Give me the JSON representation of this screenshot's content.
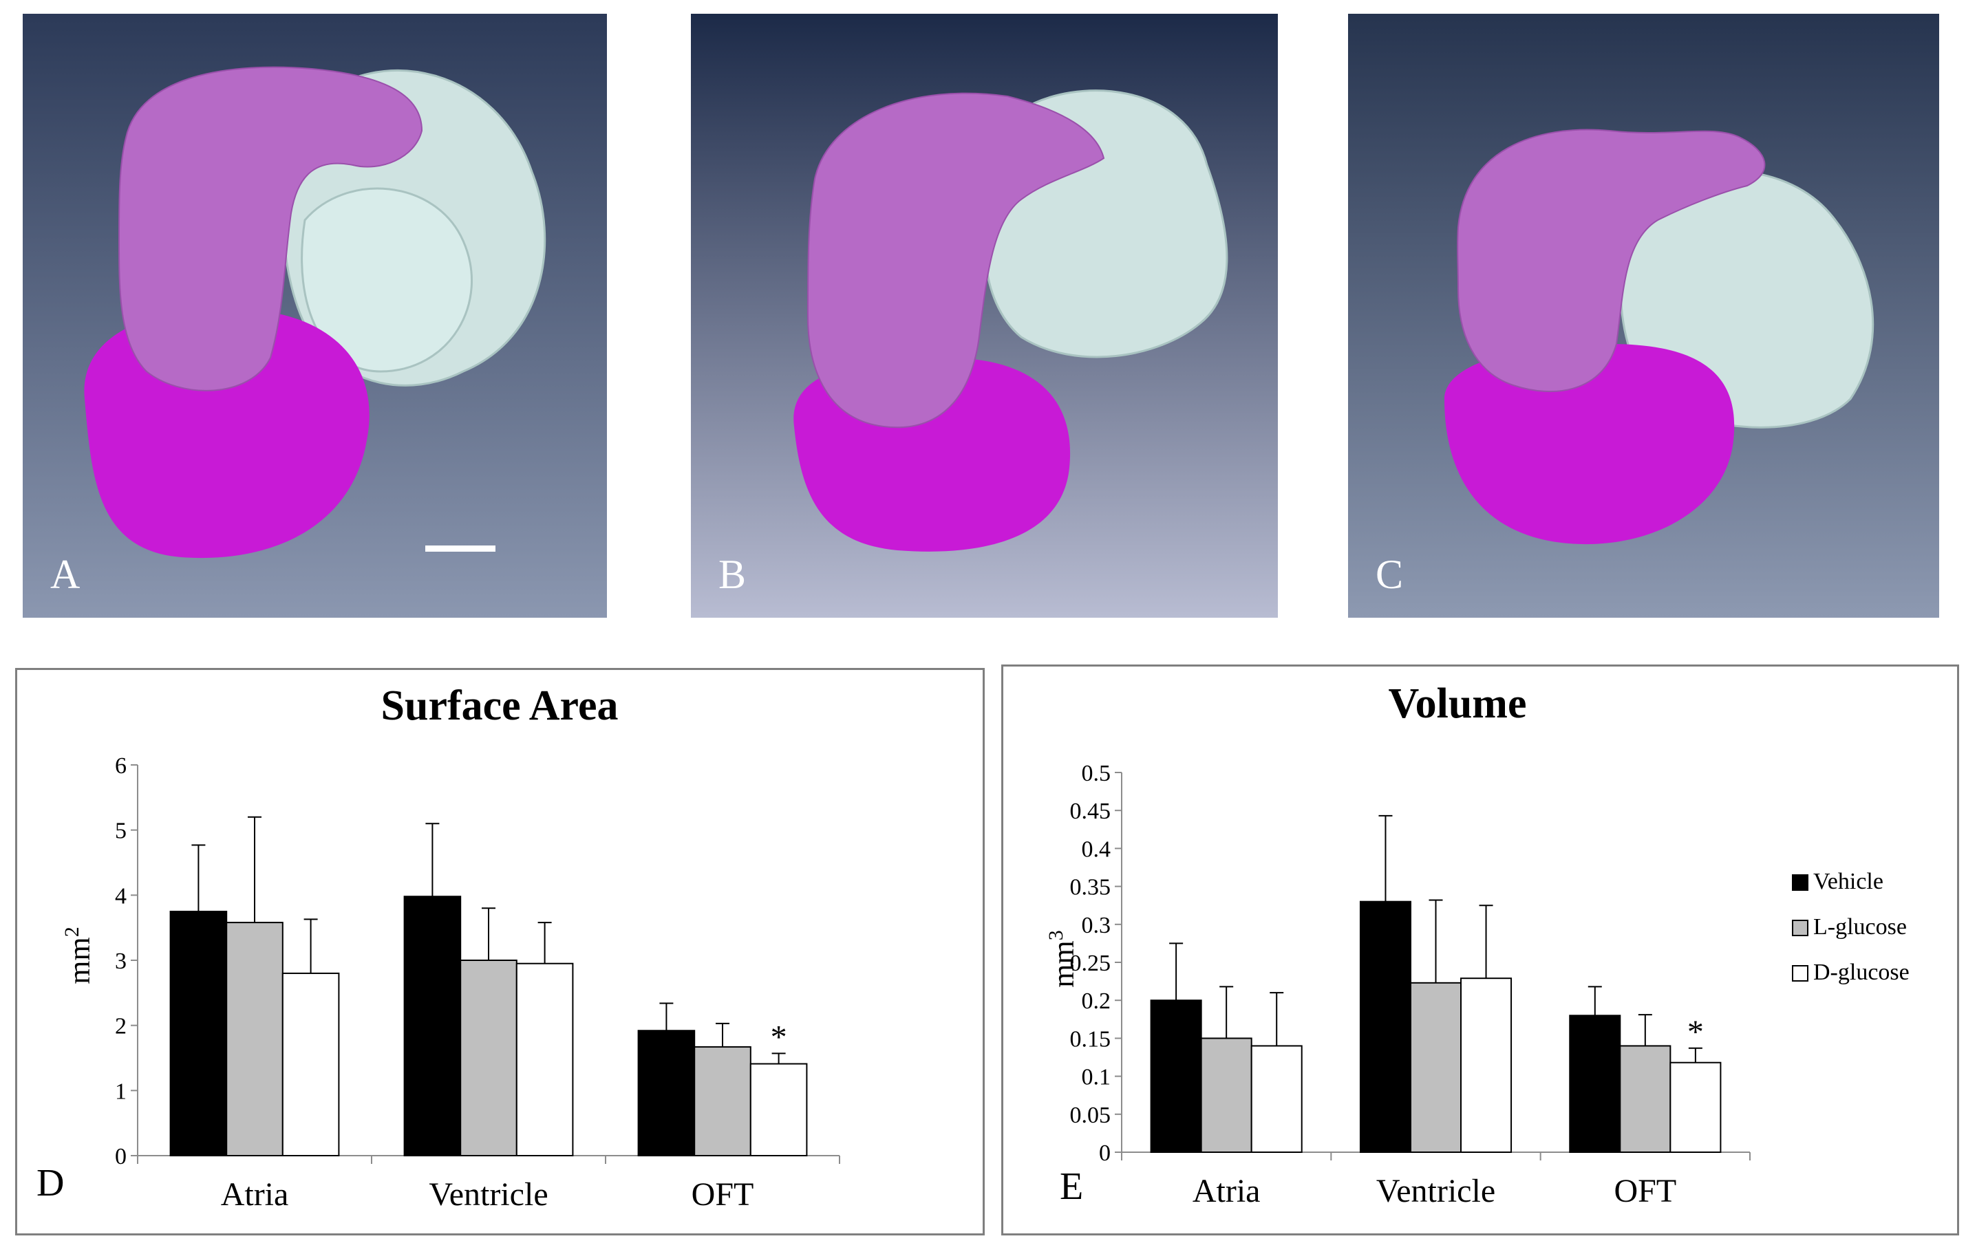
{
  "panels": {
    "a": {
      "label": "A"
    },
    "b": {
      "label": "B"
    },
    "c": {
      "label": "C"
    }
  },
  "colors": {
    "atria_3d": "#b66ac6",
    "ventricle_3d": "#c81ad6",
    "oft_3d": "#cfe6e3",
    "vehicle": "#000000",
    "l_glucose": "#bfbfbf",
    "d_glucose": "#ffffff"
  },
  "chart_data": [
    {
      "type": "bar",
      "panel_label": "D",
      "title": "Surface Area",
      "ylabel_base": "mm",
      "ylabel_sup": "2",
      "ylim": [
        0,
        6
      ],
      "yticks": [
        "0",
        "1",
        "2",
        "3",
        "4",
        "5",
        "6"
      ],
      "categories": [
        "Atria",
        "Ventricle",
        "OFT"
      ],
      "series": [
        {
          "name": "Vehicle",
          "values": [
            3.75,
            3.98,
            1.92
          ],
          "errors": [
            1.02,
            1.12,
            0.42
          ]
        },
        {
          "name": "L-glucose",
          "values": [
            3.58,
            3.0,
            1.67
          ],
          "errors": [
            1.62,
            0.8,
            0.36
          ]
        },
        {
          "name": "D-glucose",
          "values": [
            2.8,
            2.95,
            1.41
          ],
          "errors": [
            0.83,
            0.63,
            0.16
          ]
        }
      ],
      "annotations": [
        {
          "category": "OFT",
          "series": "D-glucose",
          "text": "*"
        }
      ],
      "legend": "none",
      "grid": false
    },
    {
      "type": "bar",
      "panel_label": "E",
      "title": "Volume",
      "ylabel_base": "mm",
      "ylabel_sup": "3",
      "ylim": [
        0,
        0.5
      ],
      "yticks": [
        "0",
        "0.05",
        "0.1",
        "0.15",
        "0.2",
        "0.25",
        "0.3",
        "0.35",
        "0.4",
        "0.45",
        "0.5"
      ],
      "categories": [
        "Atria",
        "Ventricle",
        "OFT"
      ],
      "series": [
        {
          "name": "Vehicle",
          "values": [
            0.2,
            0.33,
            0.18
          ],
          "errors": [
            0.075,
            0.113,
            0.038
          ]
        },
        {
          "name": "L-glucose",
          "values": [
            0.15,
            0.223,
            0.14
          ],
          "errors": [
            0.068,
            0.109,
            0.041
          ]
        },
        {
          "name": "D-glucose",
          "values": [
            0.14,
            0.229,
            0.118
          ],
          "errors": [
            0.07,
            0.096,
            0.019
          ]
        }
      ],
      "annotations": [
        {
          "category": "OFT",
          "series": "D-glucose",
          "text": "*"
        }
      ],
      "legend": "right",
      "grid": false
    }
  ]
}
